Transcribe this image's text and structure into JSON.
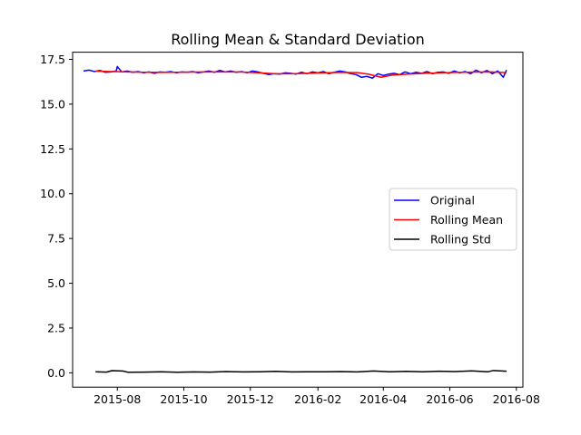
{
  "chart_data": {
    "type": "line",
    "title": "Rolling Mean & Standard Deviation",
    "xlabel": "",
    "ylabel": "",
    "x_ticks": [
      "2015-08",
      "2015-10",
      "2015-12",
      "2016-02",
      "2016-04",
      "2016-06",
      "2016-08"
    ],
    "y_ticks": [
      "0.0",
      "2.5",
      "5.0",
      "7.5",
      "10.0",
      "12.5",
      "15.0",
      "17.5"
    ],
    "xlim": [
      "2015-06-21",
      "2016-08-07"
    ],
    "ylim": [
      -0.8,
      17.9
    ],
    "grid": false,
    "legend_position": "center-right",
    "series": [
      {
        "name": "Original",
        "color": "#0000ff",
        "x": [
          "2015-07-01",
          "2015-07-06",
          "2015-07-11",
          "2015-07-16",
          "2015-07-21",
          "2015-07-26",
          "2015-07-31",
          "2015-08-01",
          "2015-08-05",
          "2015-08-10",
          "2015-08-15",
          "2015-08-20",
          "2015-08-25",
          "2015-08-30",
          "2015-09-04",
          "2015-09-09",
          "2015-09-14",
          "2015-09-19",
          "2015-09-24",
          "2015-09-29",
          "2015-10-04",
          "2015-10-09",
          "2015-10-14",
          "2015-10-19",
          "2015-10-24",
          "2015-10-29",
          "2015-11-03",
          "2015-11-08",
          "2015-11-13",
          "2015-11-18",
          "2015-11-23",
          "2015-11-28",
          "2015-12-03",
          "2015-12-08",
          "2015-12-13",
          "2015-12-18",
          "2015-12-23",
          "2015-12-28",
          "2016-01-02",
          "2016-01-07",
          "2016-01-12",
          "2016-01-17",
          "2016-01-22",
          "2016-01-27",
          "2016-02-01",
          "2016-02-06",
          "2016-02-11",
          "2016-02-16",
          "2016-02-21",
          "2016-02-26",
          "2016-03-02",
          "2016-03-07",
          "2016-03-12",
          "2016-03-17",
          "2016-03-22",
          "2016-03-27",
          "2016-04-01",
          "2016-04-06",
          "2016-04-11",
          "2016-04-16",
          "2016-04-21",
          "2016-04-26",
          "2016-05-01",
          "2016-05-06",
          "2016-05-11",
          "2016-05-16",
          "2016-05-21",
          "2016-05-26",
          "2016-05-31",
          "2016-06-05",
          "2016-06-10",
          "2016-06-15",
          "2016-06-20",
          "2016-06-25",
          "2016-06-30",
          "2016-07-05",
          "2016-07-10",
          "2016-07-15",
          "2016-07-20",
          "2016-07-23"
        ],
        "values": [
          16.85,
          16.9,
          16.82,
          16.88,
          16.78,
          16.8,
          16.85,
          17.1,
          16.8,
          16.85,
          16.78,
          16.82,
          16.75,
          16.8,
          16.72,
          16.8,
          16.78,
          16.82,
          16.75,
          16.8,
          16.78,
          16.82,
          16.75,
          16.8,
          16.85,
          16.78,
          16.88,
          16.8,
          16.85,
          16.78,
          16.82,
          16.75,
          16.85,
          16.8,
          16.72,
          16.65,
          16.7,
          16.68,
          16.75,
          16.72,
          16.68,
          16.78,
          16.7,
          16.8,
          16.75,
          16.82,
          16.7,
          16.78,
          16.85,
          16.8,
          16.7,
          16.65,
          16.5,
          16.55,
          16.45,
          16.7,
          16.6,
          16.68,
          16.72,
          16.65,
          16.8,
          16.7,
          16.78,
          16.72,
          16.82,
          16.7,
          16.78,
          16.8,
          16.72,
          16.85,
          16.75,
          16.82,
          16.7,
          16.9,
          16.75,
          16.88,
          16.7,
          16.85,
          16.5,
          16.9
        ]
      },
      {
        "name": "Rolling Mean",
        "color": "#ff0000",
        "x": [
          "2015-07-12",
          "2015-07-27",
          "2015-08-11",
          "2015-08-26",
          "2015-09-10",
          "2015-09-25",
          "2015-10-10",
          "2015-10-25",
          "2015-11-09",
          "2015-11-24",
          "2015-12-09",
          "2015-12-24",
          "2016-01-08",
          "2016-01-23",
          "2016-02-07",
          "2016-02-22",
          "2016-03-08",
          "2016-03-18",
          "2016-03-30",
          "2016-04-09",
          "2016-04-24",
          "2016-05-09",
          "2016-05-24",
          "2016-06-08",
          "2016-06-23",
          "2016-07-08",
          "2016-07-23"
        ],
        "values": [
          16.84,
          16.82,
          16.8,
          16.78,
          16.77,
          16.78,
          16.79,
          16.8,
          16.8,
          16.79,
          16.75,
          16.7,
          16.7,
          16.72,
          16.75,
          16.77,
          16.76,
          16.68,
          16.5,
          16.62,
          16.68,
          16.72,
          16.75,
          16.77,
          16.79,
          16.8,
          16.76
        ]
      },
      {
        "name": "Rolling Std",
        "color": "#000000",
        "x": [
          "2015-07-12",
          "2015-07-22",
          "2015-07-27",
          "2015-08-06",
          "2015-08-11",
          "2015-08-26",
          "2015-09-10",
          "2015-09-25",
          "2015-10-10",
          "2015-10-25",
          "2015-11-09",
          "2015-11-24",
          "2015-12-09",
          "2015-12-24",
          "2016-01-08",
          "2016-01-23",
          "2016-02-07",
          "2016-02-22",
          "2016-03-08",
          "2016-03-23",
          "2016-04-07",
          "2016-04-22",
          "2016-05-07",
          "2016-05-22",
          "2016-06-06",
          "2016-06-21",
          "2016-07-06",
          "2016-07-11",
          "2016-07-23"
        ],
        "values": [
          0.06,
          0.04,
          0.12,
          0.1,
          0.03,
          0.04,
          0.06,
          0.03,
          0.05,
          0.04,
          0.07,
          0.05,
          0.06,
          0.08,
          0.05,
          0.06,
          0.06,
          0.07,
          0.05,
          0.1,
          0.06,
          0.08,
          0.06,
          0.09,
          0.07,
          0.11,
          0.06,
          0.13,
          0.09
        ]
      }
    ]
  }
}
